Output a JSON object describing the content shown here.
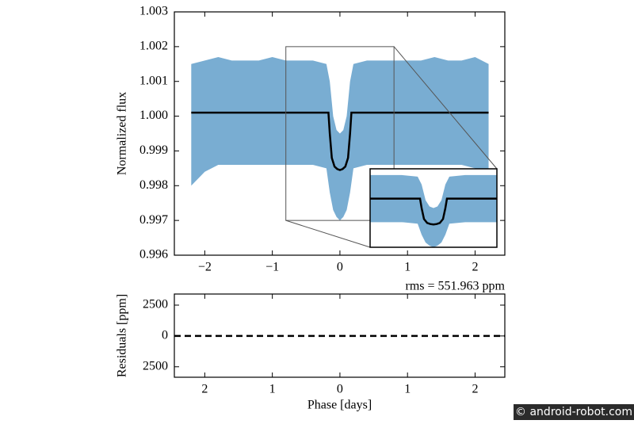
{
  "chart_data": [
    {
      "type": "line",
      "ylabel": "Normalized flux",
      "xlim": [
        -2.45,
        2.44
      ],
      "ylim": [
        0.996,
        1.003
      ],
      "xticks": [
        {
          "value": -2,
          "label": "−2"
        },
        {
          "value": -1,
          "label": "−1"
        },
        0,
        1,
        2
      ],
      "yticks": [
        0.996,
        0.997,
        0.998,
        0.999,
        {
          "value": 1,
          "label": "1.000"
        },
        1.001,
        1.002,
        1.003
      ],
      "band": {
        "color": "#1f77b4",
        "x": [
          -2.2,
          -2.0,
          -1.8,
          -1.6,
          -1.4,
          -1.2,
          -1.0,
          -0.8,
          -0.6,
          -0.4,
          -0.2,
          -0.15,
          -0.1,
          -0.05,
          0,
          0.05,
          0.1,
          0.15,
          0.2,
          0.4,
          0.6,
          0.8,
          1.0,
          1.2,
          1.4,
          1.6,
          1.8,
          2.0,
          2.2
        ],
        "high": [
          1.0015,
          1.0016,
          1.0017,
          1.0016,
          1.0016,
          1.0016,
          1.0017,
          1.0016,
          1.0016,
          1.0016,
          1.0015,
          1.001,
          1.0,
          0.9996,
          0.9995,
          0.9996,
          1.0,
          1.001,
          1.0015,
          1.0016,
          1.0016,
          1.0016,
          1.0016,
          1.0016,
          1.0017,
          1.0016,
          1.0016,
          1.0017,
          1.0015
        ],
        "low": [
          0.998,
          0.9984,
          0.9986,
          0.9986,
          0.9986,
          0.9986,
          0.9986,
          0.9986,
          0.9986,
          0.9986,
          0.9985,
          0.9978,
          0.9973,
          0.9971,
          0.997,
          0.9971,
          0.9973,
          0.9978,
          0.9985,
          0.9986,
          0.9986,
          0.9986,
          0.9986,
          0.9986,
          0.9986,
          0.9986,
          0.9986,
          0.9985,
          0.9983
        ]
      },
      "x": [
        -2.2,
        -0.17,
        -0.15,
        -0.12,
        -0.08,
        -0.04,
        0,
        0.04,
        0.08,
        0.12,
        0.15,
        0.17,
        2.2
      ],
      "series": [
        {
          "color": "#000000",
          "values": [
            1.0001,
            1.0001,
            0.9995,
            0.9988,
            0.99855,
            0.99848,
            0.99845,
            0.99848,
            0.99855,
            0.9988,
            0.9995,
            1.0001,
            1.0001
          ]
        }
      ],
      "inset": {
        "xlim": [
          -0.8,
          0.8
        ],
        "ylim": [
          0.997,
          1.002
        ]
      }
    },
    {
      "type": "line",
      "annotation": "rms = 551.963 ppm",
      "xlabel": "Phase [days]",
      "ylabel": "Residuals [ppm]",
      "xlim": [
        -2.45,
        2.44
      ],
      "ylim": [
        -3350,
        3400
      ],
      "xticks": [
        {
          "value": -2,
          "label": "2"
        },
        {
          "value": -1,
          "label": "1"
        },
        0,
        1,
        2
      ],
      "yticks": [
        {
          "value": -2500,
          "label": "2500"
        },
        0,
        2500
      ],
      "x": [
        -2.45,
        2.44
      ],
      "series": [
        {
          "color": "#000000",
          "dashed": true,
          "values": [
            0,
            0
          ]
        }
      ]
    }
  ],
  "watermark": "© android-robot.com"
}
